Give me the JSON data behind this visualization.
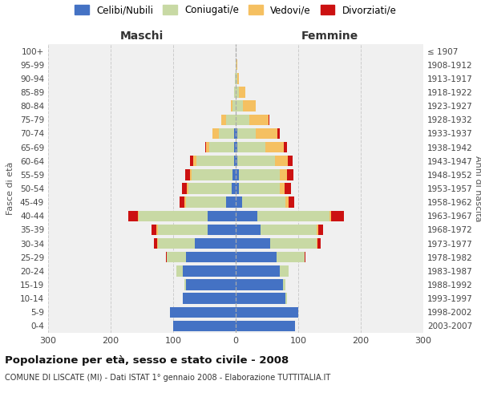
{
  "age_groups": [
    "0-4",
    "5-9",
    "10-14",
    "15-19",
    "20-24",
    "25-29",
    "30-34",
    "35-39",
    "40-44",
    "45-49",
    "50-54",
    "55-59",
    "60-64",
    "65-69",
    "70-74",
    "75-79",
    "80-84",
    "85-89",
    "90-94",
    "95-99",
    "100+"
  ],
  "birth_years": [
    "2003-2007",
    "1998-2002",
    "1993-1997",
    "1988-1992",
    "1983-1987",
    "1978-1982",
    "1973-1977",
    "1968-1972",
    "1963-1967",
    "1958-1962",
    "1953-1957",
    "1948-1952",
    "1943-1947",
    "1938-1942",
    "1933-1937",
    "1928-1932",
    "1923-1927",
    "1918-1922",
    "1913-1917",
    "1908-1912",
    "≤ 1907"
  ],
  "maschi": {
    "celibi": [
      100,
      105,
      85,
      80,
      85,
      80,
      65,
      45,
      45,
      15,
      6,
      5,
      3,
      2,
      2,
      0,
      0,
      0,
      0,
      0,
      0
    ],
    "coniugati": [
      0,
      0,
      0,
      2,
      10,
      30,
      60,
      80,
      110,
      65,
      70,
      65,
      60,
      40,
      25,
      15,
      5,
      2,
      1,
      0,
      0
    ],
    "vedovi": [
      0,
      0,
      0,
      0,
      0,
      0,
      1,
      2,
      2,
      2,
      2,
      3,
      5,
      5,
      10,
      8,
      3,
      1,
      0,
      0,
      0
    ],
    "divorziati": [
      0,
      0,
      0,
      0,
      0,
      2,
      5,
      8,
      15,
      8,
      8,
      8,
      5,
      2,
      0,
      0,
      0,
      0,
      0,
      0,
      0
    ]
  },
  "femmine": {
    "nubili": [
      95,
      100,
      80,
      75,
      70,
      65,
      55,
      40,
      35,
      10,
      5,
      5,
      3,
      2,
      2,
      0,
      0,
      0,
      0,
      0,
      0
    ],
    "coniugate": [
      0,
      0,
      2,
      5,
      15,
      45,
      75,
      90,
      115,
      70,
      65,
      65,
      60,
      45,
      30,
      22,
      12,
      5,
      2,
      1,
      0
    ],
    "vedove": [
      0,
      0,
      0,
      0,
      0,
      0,
      1,
      2,
      3,
      5,
      8,
      12,
      20,
      30,
      35,
      30,
      20,
      10,
      3,
      1,
      0
    ],
    "divorziate": [
      0,
      0,
      0,
      0,
      0,
      2,
      5,
      8,
      20,
      8,
      10,
      10,
      8,
      5,
      3,
      2,
      0,
      0,
      0,
      0,
      0
    ]
  },
  "colors": {
    "celibi_nubili": "#4472c4",
    "coniugati": "#c8d9a4",
    "vedovi": "#f5c061",
    "divorziati": "#cc1111"
  },
  "title": "Popolazione per età, sesso e stato civile - 2008",
  "subtitle": "COMUNE DI LISCATE (MI) - Dati ISTAT 1° gennaio 2008 - Elaborazione TUTTITALIA.IT",
  "xlabel_left": "Maschi",
  "xlabel_right": "Femmine",
  "ylabel_left": "Fasce di età",
  "ylabel_right": "Anni di nascita",
  "xlim": 300,
  "bg_color": "#f0f0f0",
  "grid_color": "#cccccc",
  "legend_labels": [
    "Celibi/Nubili",
    "Coniugati/e",
    "Vedovi/e",
    "Divorziati/e"
  ]
}
